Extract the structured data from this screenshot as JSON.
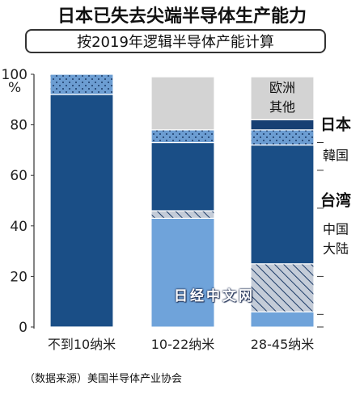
{
  "title": "日本已失去尖端半导体生产能力",
  "subtitle": "按2019年逻辑半导体产能计算",
  "source": "（数据来源）美国半导体产业协会",
  "watermark": "日经中文网",
  "colors": {
    "日本": "#173f73",
    "韓国": "#6c9dd2",
    "台湾": "#1a4e86",
    "中国大陆": "#b7c1cf",
    "欧洲其他": "#d3d3d3",
    "十-22中国大陆": "#6fa3da"
  },
  "chart_data": {
    "type": "bar",
    "stacked": true,
    "categories": [
      "不到10纳米",
      "10-22纳米",
      "28-45纳米"
    ],
    "ylim": [
      0,
      100
    ],
    "yticks": [
      0,
      20,
      40,
      60,
      80,
      100
    ],
    "ylabel": "%",
    "xlabel": "",
    "series": [
      {
        "name": "中国大陆",
        "style": "hatch",
        "values": [
          0,
          3,
          19
        ]
      },
      {
        "name": "台湾",
        "style": "solid-dark",
        "values": [
          92,
          27,
          47
        ]
      },
      {
        "name": "韓国",
        "style": "dots",
        "values": [
          8,
          5,
          6
        ]
      },
      {
        "name": "日本",
        "style": "solid-darkest",
        "values": [
          0,
          0,
          4
        ]
      },
      {
        "name": "欧洲其他",
        "style": "gray",
        "values": [
          0,
          21,
          17
        ]
      }
    ],
    "extra_segments": [
      {
        "category": "10-22纳米",
        "style": "solid-light",
        "values_from": 0,
        "values_to": 43
      }
    ],
    "base_segment": {
      "category": "28-45纳米",
      "style": "solid-light",
      "value": 6
    },
    "legend_labels": [
      {
        "text": "欧洲\n其他",
        "series": "欧洲其他",
        "y": 91,
        "inside": true
      },
      {
        "text": "日本",
        "series": "日本",
        "y": 80,
        "bold": true
      },
      {
        "text": "韓国",
        "series": "韓国",
        "y": 68
      },
      {
        "text": "台湾",
        "series": "台湾",
        "y": 50,
        "bold": true
      },
      {
        "text": "中国\n大陆",
        "series": "中国大陆",
        "y": 35
      }
    ]
  }
}
